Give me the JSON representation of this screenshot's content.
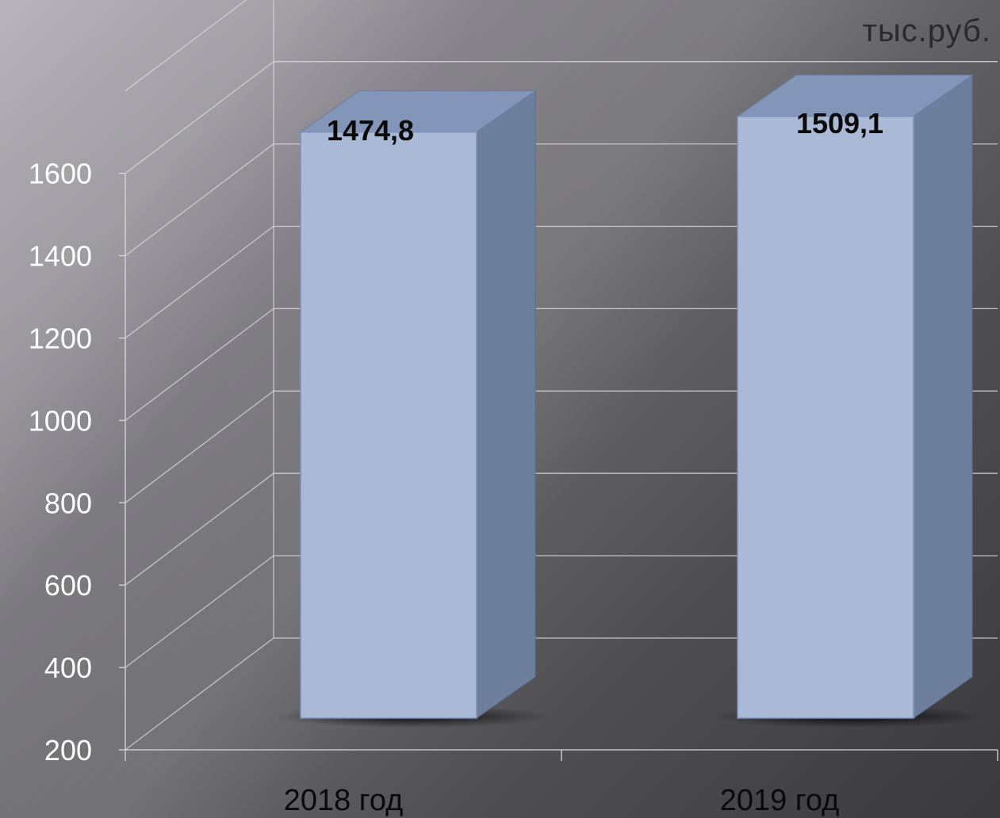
{
  "chart_data": {
    "type": "bar",
    "unit_label": "тыс.руб.",
    "categories": [
      "2018 год",
      "2019 год"
    ],
    "values": [
      1474.8,
      1509.1
    ],
    "data_labels": [
      "1474,8",
      "1509,1"
    ],
    "yticks": [
      200,
      400,
      600,
      800,
      1000,
      1200,
      1400,
      1600
    ],
    "ylim": [
      200,
      1800
    ],
    "grid": true,
    "three_d": true,
    "colors": {
      "bar_front": "#aab9d6",
      "bar_side": "#6e7f9e",
      "bar_top": "#8396ba",
      "gridline": "#d8d8dc",
      "tick_text": "#ffffff",
      "label_text": "#0a0a0a"
    }
  }
}
